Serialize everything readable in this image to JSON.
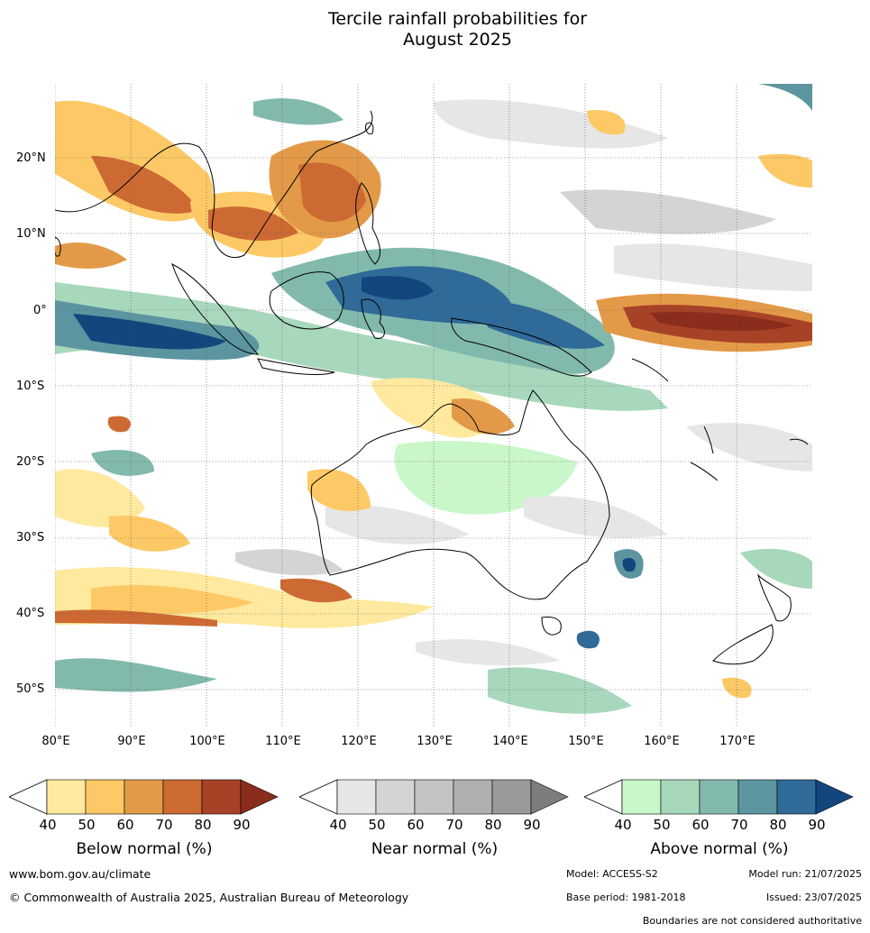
{
  "title_line1": "Tercile rainfall probabilities for",
  "title_line2": "August 2025",
  "lat_labels": [
    "20°N",
    "10°N",
    "0°",
    "10°S",
    "20°S",
    "30°S",
    "40°S",
    "50°S"
  ],
  "lon_labels": [
    "80°E",
    "90°E",
    "100°E",
    "110°E",
    "120°E",
    "130°E",
    "140°E",
    "150°E",
    "160°E",
    "170°E"
  ],
  "colorbars": {
    "below": {
      "label": "Below normal (%)",
      "ticks": [
        "40",
        "50",
        "60",
        "70",
        "80",
        "90"
      ],
      "colors": [
        "#fee99e",
        "#fdc966",
        "#e39a48",
        "#cd6a33",
        "#a84227",
        "#8a2d1c"
      ]
    },
    "near": {
      "label": "Near normal (%)",
      "ticks": [
        "40",
        "50",
        "60",
        "70",
        "80",
        "90"
      ],
      "colors": [
        "#e6e6e6",
        "#d4d4d4",
        "#c4c4c4",
        "#b0b0b0",
        "#9a9a9a",
        "#7d7d7d"
      ]
    },
    "above": {
      "label": "Above normal (%)",
      "ticks": [
        "40",
        "50",
        "60",
        "70",
        "80",
        "90"
      ],
      "colors": [
        "#c9f7c9",
        "#a8d8bc",
        "#82b9ad",
        "#5c95a0",
        "#2f6a98",
        "#14467e"
      ]
    }
  },
  "footer": {
    "website": "www.bom.gov.au/climate",
    "copyright": "© Commonwealth of Australia 2025, Australian Bureau of Meteorology",
    "model": "Model: ACCESS-S2",
    "model_run": "Model run: 21/07/2025",
    "base_period": "Base period: 1981-2018",
    "issued": "Issued: 23/07/2025",
    "disclaimer": "Boundaries are not considered authoritative"
  }
}
